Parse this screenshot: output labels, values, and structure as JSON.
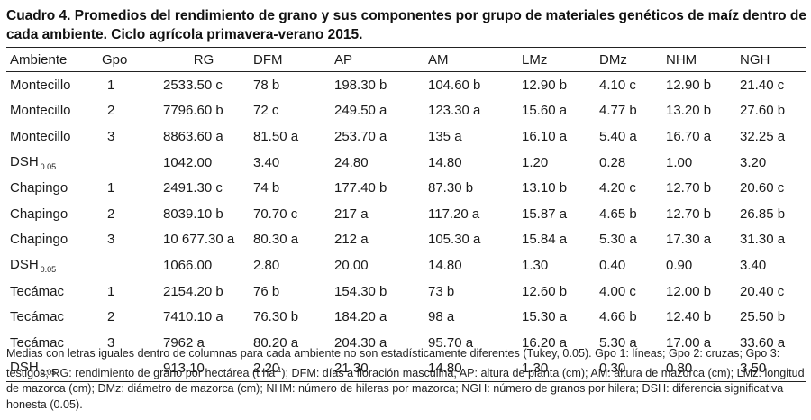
{
  "caption": "Cuadro 4. Promedios del rendimiento de grano y sus componentes por grupo de materiales genéticos de maíz dentro de cada ambiente. Ciclo agrícola primavera-verano 2015.",
  "headers": [
    "Ambiente",
    "Gpo",
    "RG",
    "DFM",
    "AP",
    "AM",
    "LMz",
    "DMz",
    "NHM",
    "NGH"
  ],
  "rows": [
    {
      "amb": "Montecillo",
      "gpo": "1",
      "rg": "2533.50 c",
      "dfm": "78 b",
      "ap": "198.30 b",
      "am": "104.60 b",
      "lmz": "12.90 b",
      "dmz": "4.10 c",
      "nhm": "12.90 b",
      "ngh": "21.40 c"
    },
    {
      "amb": "Montecillo",
      "gpo": "2",
      "rg": "7796.60 b",
      "dfm": "72 c",
      "ap": "249.50 a",
      "am": "123.30 a",
      "lmz": "15.60 a",
      "dmz": "4.77 b",
      "nhm": "13.20 b",
      "ngh": "27.60 b"
    },
    {
      "amb": "Montecillo",
      "gpo": "3",
      "rg": "8863.60 a",
      "dfm": "81.50 a",
      "ap": "253.70 a",
      "am": "135 a",
      "lmz": "16.10 a",
      "dmz": "5.40 a",
      "nhm": "16.70 a",
      "ngh": "32.25 a"
    },
    {
      "amb": "DSH",
      "sub": "0.05",
      "gpo": "",
      "rg": "1042.00",
      "dfm": "3.40",
      "ap": "24.80",
      "am": "14.80",
      "lmz": "1.20",
      "dmz": "0.28",
      "nhm": "1.00",
      "ngh": "3.20"
    },
    {
      "amb": "Chapingo",
      "gpo": "1",
      "rg": "2491.30 c",
      "dfm": "74 b",
      "ap": "177.40 b",
      "am": "87.30 b",
      "lmz": "13.10 b",
      "dmz": "4.20 c",
      "nhm": "12.70 b",
      "ngh": "20.60 c"
    },
    {
      "amb": "Chapingo",
      "gpo": "2",
      "rg": "8039.10 b",
      "dfm": "70.70 c",
      "ap": "217 a",
      "am": "117.20 a",
      "lmz": "15.87 a",
      "dmz": "4.65 b",
      "nhm": "12.70 b",
      "ngh": "26.85 b"
    },
    {
      "amb": "Chapingo",
      "gpo": "3",
      "rg": "10 677.30 a",
      "dfm": "80.30 a",
      "ap": "212 a",
      "am": "105.30 a",
      "lmz": "15.84 a",
      "dmz": "5.30 a",
      "nhm": "17.30 a",
      "ngh": "31.30 a"
    },
    {
      "amb": "DSH",
      "sub": "0.05",
      "gpo": "",
      "rg": "1066.00",
      "dfm": "2.80",
      "ap": "20.00",
      "am": "14.80",
      "lmz": "1.30",
      "dmz": "0.40",
      "nhm": "0.90",
      "ngh": "3.40"
    },
    {
      "amb": "Tecámac",
      "gpo": "1",
      "rg": "2154.20 b",
      "dfm": "76 b",
      "ap": "154.30 b",
      "am": "73 b",
      "lmz": "12.60 b",
      "dmz": "4.00 c",
      "nhm": "12.00 b",
      "ngh": "20.40 c"
    },
    {
      "amb": "Tecámac",
      "gpo": "2",
      "rg": "7410.10 a",
      "dfm": "76.30 b",
      "ap": "184.20 a",
      "am": "98 a",
      "lmz": "15.30 a",
      "dmz": "4.66 b",
      "nhm": "12.40 b",
      "ngh": "25.50 b"
    },
    {
      "amb": "Tecámac",
      "gpo": "3",
      "rg": "7962 a",
      "dfm": "80.20 a",
      "ap": "204.30 a",
      "am": "95.70 a",
      "lmz": "16.20 a",
      "dmz": "5.30 a",
      "nhm": "17.00 a",
      "ngh": "33.60 a"
    },
    {
      "amb": "DSH",
      "sub": "0.05",
      "gpo": "",
      "rg": "913.10",
      "dfm": "2.20",
      "ap": "21.30",
      "am": "14.80",
      "lmz": "1.30",
      "dmz": "0.30",
      "nhm": "0.80",
      "ngh": "3.50"
    }
  ],
  "notes": {
    "before_sup": "Medias con letras iguales dentro de columnas para cada ambiente no son estadísticamente diferentes (Tukey, 0.05). Gpo 1: líneas; Gpo 2: cruzas; Gpo 3: testigos; RG: rendimiento de grano por hectárea (t ha",
    "sup": "-1",
    "after_sup": "); DFM: días a floración masculina; AP: altura de planta (cm); AM: altura de mazorca (cm); LMz: longitud de mazorca (cm); DMz: diámetro de mazorca (cm); NHM: número de hileras por mazorca; NGH: número de granos por hilera; DSH: diferencia significativa honesta (0.05)."
  }
}
